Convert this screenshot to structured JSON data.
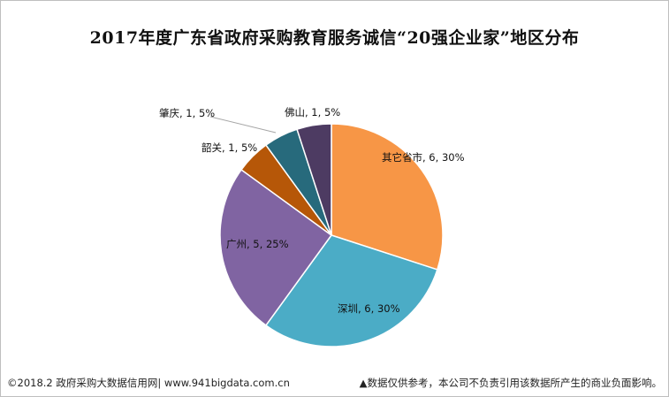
{
  "title": "2017年度广东省政府采购教育服务诚信“20强企业家”地区分布",
  "footer": {
    "left": "©2018.2 政府采购大数据信用网| www.941bigdata.com.cn",
    "right": "▲数据仅供参考，本公司不负责引用该数据所产生的商业负面影响。"
  },
  "chart_data": {
    "type": "pie",
    "title": "2017年度广东省政府采购教育服务诚信“20强企业家”地区分布",
    "slices": [
      {
        "name": "其它省市",
        "value": 6,
        "percent": "30%",
        "label": "其它省市, 6, 30%",
        "color": "#f79646"
      },
      {
        "name": "深圳",
        "value": 6,
        "percent": "30%",
        "label": "深圳, 6, 30%",
        "color": "#4bacc6"
      },
      {
        "name": "广州",
        "value": 5,
        "percent": "25%",
        "label": "广州, 5, 25%",
        "color": "#8064a2"
      },
      {
        "name": "韶关",
        "value": 1,
        "percent": "5%",
        "label": "韶关, 1, 5%",
        "color": "#b65708"
      },
      {
        "name": "肇庆",
        "value": 1,
        "percent": "5%",
        "label": "肇庆, 1, 5%",
        "color": "#276a7c"
      },
      {
        "name": "佛山",
        "value": 1,
        "percent": "5%",
        "label": "佛山, 1, 5%",
        "color": "#4d3b62"
      }
    ],
    "start_angle": "12 o'clock",
    "direction": "clockwise",
    "legend": "none",
    "data_labels": "category, value, percent"
  }
}
